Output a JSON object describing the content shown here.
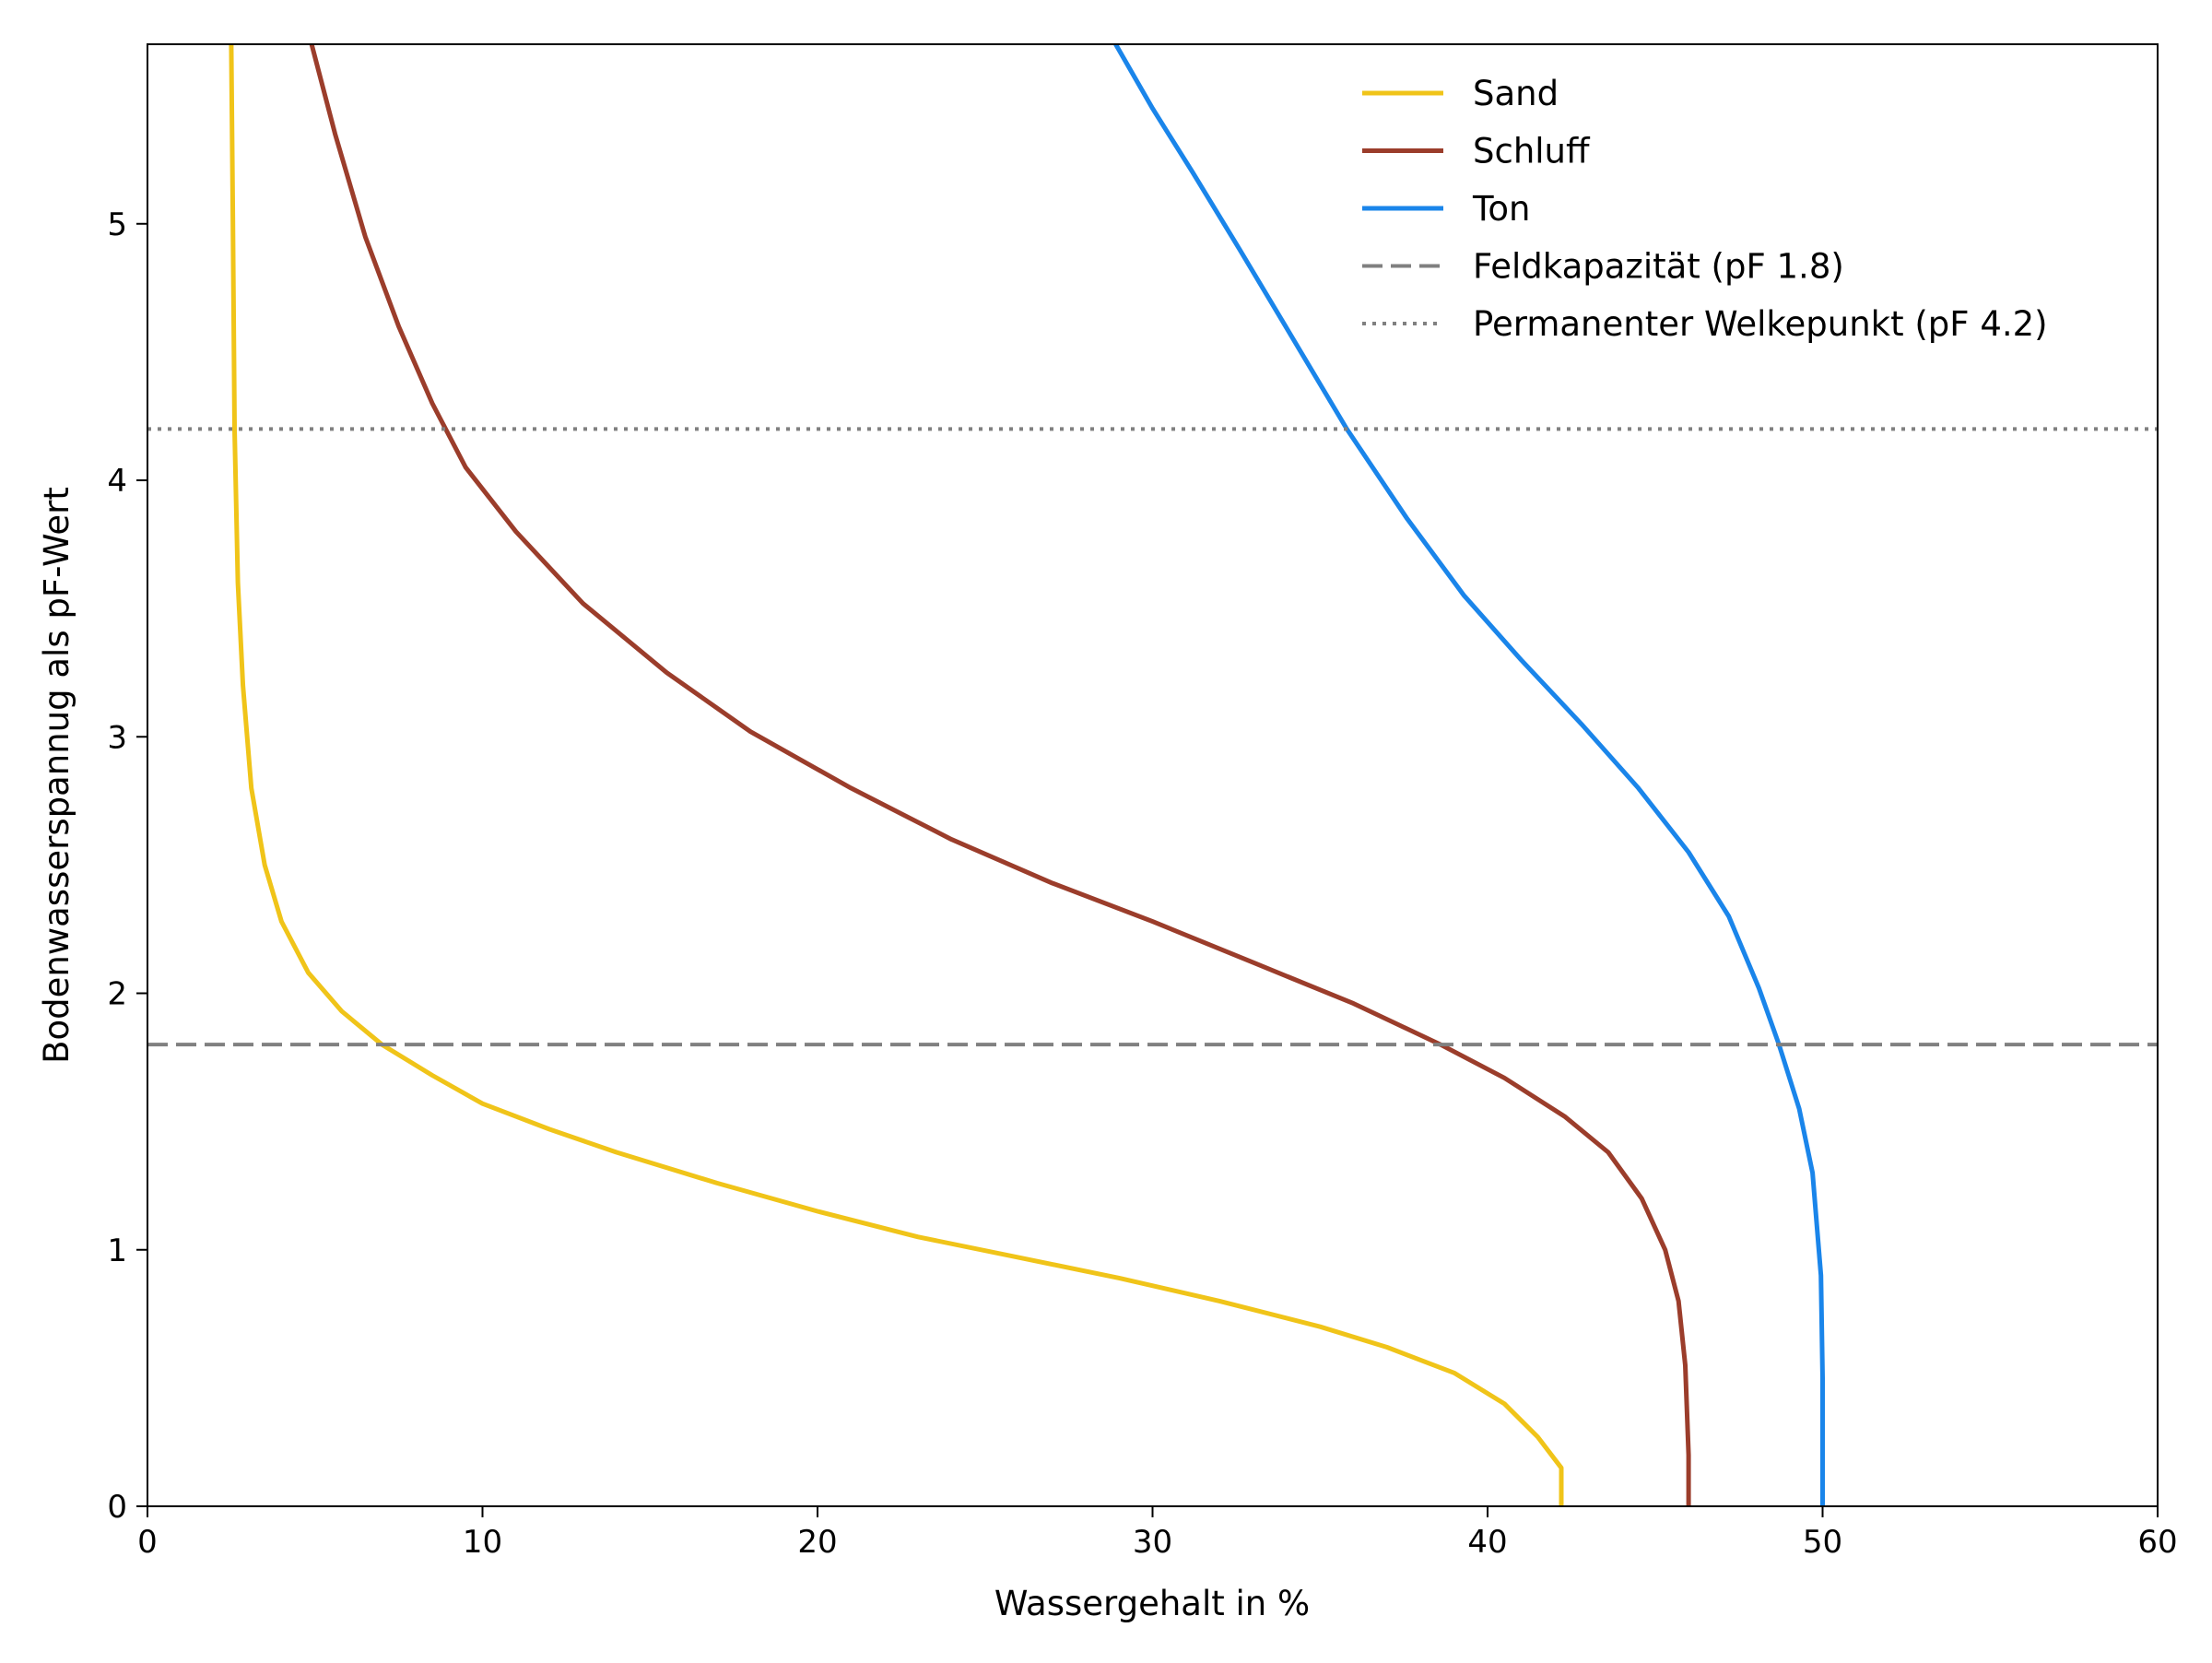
{
  "chart_data": {
    "type": "line",
    "title": "",
    "xlabel": "Wassergehalt in %",
    "ylabel": "Bodenwasserspannug als pF-Wert",
    "xlim": [
      0,
      60
    ],
    "ylim": [
      0,
      5.7
    ],
    "xticks": [
      "0",
      "10",
      "20",
      "30",
      "40",
      "50",
      "60"
    ],
    "yticks": [
      "0",
      "1",
      "2",
      "3",
      "4",
      "5"
    ],
    "grid": false,
    "legend_position": "top-right",
    "series": [
      {
        "name": "Sand",
        "color": "#F0C419",
        "style": "solid",
        "points": [
          [
            42.2,
            0
          ],
          [
            42.2,
            0.15
          ],
          [
            41.5,
            0.27
          ],
          [
            40.5,
            0.4
          ],
          [
            39,
            0.52
          ],
          [
            37,
            0.62
          ],
          [
            35,
            0.7
          ],
          [
            32,
            0.8
          ],
          [
            29,
            0.89
          ],
          [
            26,
            0.97
          ],
          [
            23,
            1.05
          ],
          [
            20,
            1.15
          ],
          [
            17,
            1.26
          ],
          [
            14,
            1.38
          ],
          [
            12,
            1.47
          ],
          [
            10,
            1.57
          ],
          [
            8.5,
            1.68
          ],
          [
            7,
            1.8
          ],
          [
            5.8,
            1.93
          ],
          [
            4.8,
            2.08
          ],
          [
            4,
            2.28
          ],
          [
            3.5,
            2.5
          ],
          [
            3.1,
            2.8
          ],
          [
            2.85,
            3.2
          ],
          [
            2.7,
            3.6
          ],
          [
            2.6,
            4.2
          ],
          [
            2.55,
            5
          ],
          [
            2.5,
            5.7
          ]
        ]
      },
      {
        "name": "Schluff",
        "color": "#9B3D2B",
        "style": "solid",
        "points": [
          [
            46,
            0
          ],
          [
            46,
            0.2
          ],
          [
            45.9,
            0.55
          ],
          [
            45.7,
            0.8
          ],
          [
            45.3,
            1.0
          ],
          [
            44.6,
            1.2
          ],
          [
            43.6,
            1.38
          ],
          [
            42.3,
            1.52
          ],
          [
            40.5,
            1.67
          ],
          [
            38.6,
            1.8
          ],
          [
            36,
            1.96
          ],
          [
            33,
            2.12
          ],
          [
            30,
            2.28
          ],
          [
            27,
            2.43
          ],
          [
            24,
            2.6
          ],
          [
            21,
            2.8
          ],
          [
            18,
            3.02
          ],
          [
            15.5,
            3.25
          ],
          [
            13,
            3.52
          ],
          [
            11,
            3.8
          ],
          [
            9.5,
            4.05
          ],
          [
            8.5,
            4.3
          ],
          [
            7.5,
            4.6
          ],
          [
            6.5,
            4.95
          ],
          [
            5.6,
            5.35
          ],
          [
            4.9,
            5.7
          ]
        ]
      },
      {
        "name": "Ton",
        "color": "#1A85EA",
        "style": "solid",
        "points": [
          [
            50,
            0
          ],
          [
            50,
            0.5
          ],
          [
            49.95,
            0.9
          ],
          [
            49.7,
            1.3
          ],
          [
            49.3,
            1.55
          ],
          [
            48.7,
            1.8
          ],
          [
            48.1,
            2.02
          ],
          [
            47.2,
            2.3
          ],
          [
            46,
            2.55
          ],
          [
            44.5,
            2.8
          ],
          [
            42.8,
            3.05
          ],
          [
            41,
            3.3
          ],
          [
            39.3,
            3.55
          ],
          [
            37.6,
            3.85
          ],
          [
            35.8,
            4.2
          ],
          [
            34.2,
            4.55
          ],
          [
            32.6,
            4.9
          ],
          [
            31.2,
            5.2
          ],
          [
            30,
            5.45
          ],
          [
            28.9,
            5.7
          ]
        ]
      },
      {
        "name": "Feldkapazität (pF 1.8)",
        "color": "#808080",
        "style": "dashed",
        "y": 1.8
      },
      {
        "name": "Permanenter Welkepunkt (pF 4.2)",
        "color": "#808080",
        "style": "dotted",
        "y": 4.2
      }
    ]
  }
}
